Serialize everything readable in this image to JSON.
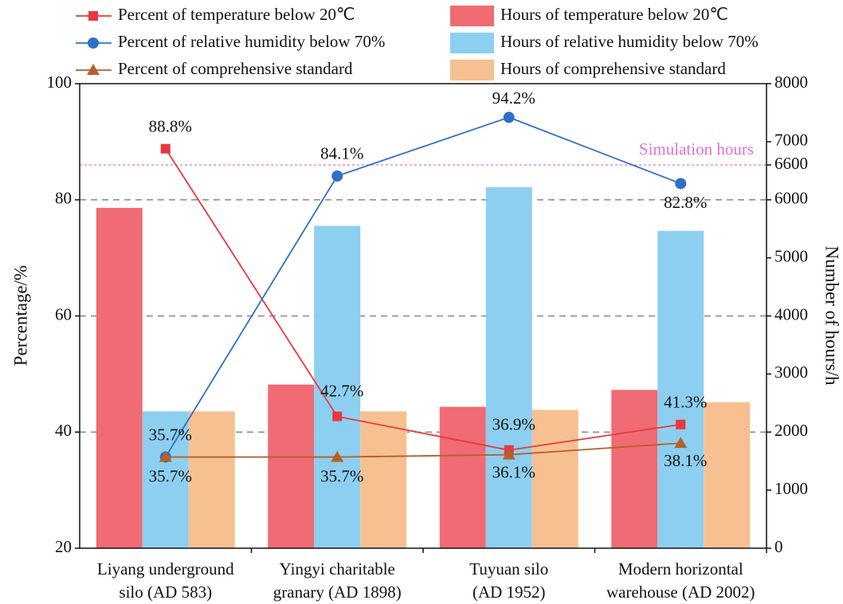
{
  "chart_data": {
    "type": "bar-line",
    "y_label": "Percentage/%",
    "y2_label": "Number of hours/h",
    "categories": [
      [
        "Liyang underground",
        "silo (AD 583)"
      ],
      [
        "Yingyi charitable",
        "granary (AD 1898)"
      ],
      [
        "Tuyuan silo",
        "(AD 1952)"
      ],
      [
        "Modern horizontal",
        "warehouse (AD 2002)"
      ]
    ],
    "ylim": [
      20,
      100
    ],
    "yticks": [
      20,
      40,
      60,
      80,
      100
    ],
    "y2lim": [
      0,
      8000
    ],
    "y2ticks": [
      0,
      1000,
      2000,
      3000,
      4000,
      5000,
      6000,
      6600,
      7000,
      8000
    ],
    "grid": true,
    "reference_line": {
      "value": 6600,
      "label": "Simulation hours",
      "color": "#e070d0",
      "axis": "y2"
    },
    "series": [
      {
        "name": "Percent of temperature below 20℃",
        "kind": "line",
        "marker": "square",
        "color": "#e8383d",
        "values": [
          88.8,
          42.7,
          36.9,
          41.3
        ],
        "value_labels": [
          "88.8%",
          "42.7%",
          "36.9%",
          "41.3%"
        ]
      },
      {
        "name": "Percent of relative humidity below 70%",
        "kind": "line",
        "marker": "circle",
        "color": "#2f6fc8",
        "values": [
          35.7,
          84.1,
          94.2,
          82.8
        ],
        "value_labels": [
          "35.7%",
          "84.1%",
          "94.2%",
          "82.8%"
        ]
      },
      {
        "name": "Percent of comprehensive standard",
        "kind": "line",
        "marker": "triangle",
        "color": "#b5612a",
        "values": [
          35.7,
          35.7,
          36.1,
          38.1
        ],
        "value_labels": [
          "35.7%",
          "35.7%",
          "36.1%",
          "38.1%"
        ]
      },
      {
        "name": "Hours of temperature below 20℃",
        "kind": "bar",
        "axis": "y2",
        "color": "#f06b73",
        "values": [
          5861,
          2818,
          2435,
          2726
        ]
      },
      {
        "name": "Hours of relative humidity below 70%",
        "kind": "bar",
        "axis": "y2",
        "color": "#8dcff0",
        "values": [
          2356,
          5551,
          6217,
          5465
        ]
      },
      {
        "name": "Hours of comprehensive standard",
        "kind": "bar",
        "axis": "y2",
        "color": "#f6c090",
        "values": [
          2356,
          2356,
          2383,
          2515
        ]
      }
    ]
  }
}
